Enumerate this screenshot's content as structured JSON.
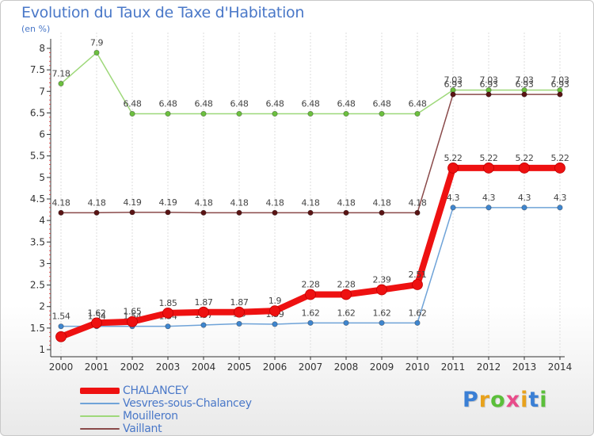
{
  "header": {
    "title": "Evolution du Taux de Taxe d'Habitation",
    "unit": "(en %)"
  },
  "logo": {
    "text": "Proxiti",
    "letter_colors": [
      "#3a7fd5",
      "#e8a21c",
      "#5bbf3a",
      "#e84c8a",
      "#e8a21c",
      "#3a7fd5",
      "#5bbf3a"
    ]
  },
  "chart_data": {
    "type": "line",
    "title": "Evolution du Taux de Taxe d'Habitation",
    "ylabel": "(en %)",
    "xlabel": "",
    "x": [
      "2000",
      "2001",
      "2002",
      "2003",
      "2004",
      "2005",
      "2006",
      "2007",
      "2008",
      "2009",
      "2010",
      "2011",
      "2012",
      "2013",
      "2014"
    ],
    "ylim": [
      0.75,
      8.1
    ],
    "y_ticks": [
      1,
      1.5,
      2,
      2.5,
      3,
      3.5,
      4,
      4.5,
      5,
      5.5,
      6,
      6.5,
      7,
      7.5,
      8
    ],
    "y_tick_labels": [
      "1",
      "1.5",
      "2",
      "2.5",
      "3",
      "3.5",
      "4",
      "4.5",
      "5",
      "5.5",
      "6",
      "6.5",
      "7",
      "7.5",
      "8"
    ],
    "grid": "vertical",
    "legend": "bottom-left",
    "series": [
      {
        "name": "CHALANCEY",
        "color": "#ee1111",
        "marker_color": "#ee1111",
        "emphasis": "thick",
        "values": [
          1.3,
          1.62,
          1.65,
          1.85,
          1.87,
          1.87,
          1.9,
          2.28,
          2.28,
          2.39,
          2.51,
          5.22,
          5.22,
          5.22,
          5.22
        ],
        "labels": [
          "",
          "1.62",
          "1.65",
          "1.85",
          "1.87",
          "1.87",
          "1.9",
          "2.28",
          "2.28",
          "2.39",
          "2.51",
          "5.22",
          "5.22",
          "5.22",
          "5.22"
        ]
      },
      {
        "name": "Vesvres-sous-Chalancey",
        "color": "#6fa3d8",
        "marker_color": "#3f86cf",
        "emphasis": "thin",
        "values": [
          1.54,
          1.54,
          1.54,
          1.54,
          1.57,
          1.6,
          1.59,
          1.62,
          1.62,
          1.62,
          1.62,
          4.3,
          4.3,
          4.3,
          4.3
        ],
        "labels": [
          "1.54",
          "1.54",
          "1.54",
          "1.54",
          "1.57",
          "1.6",
          "1.59",
          "1.62",
          "1.62",
          "1.62",
          "1.62",
          "4.3",
          "4.3",
          "4.3",
          "4.3"
        ]
      },
      {
        "name": "Mouilleron",
        "color": "#9ed87a",
        "marker_color": "#6cc03f",
        "emphasis": "thin",
        "values": [
          7.18,
          7.9,
          6.48,
          6.48,
          6.48,
          6.48,
          6.48,
          6.48,
          6.48,
          6.48,
          6.48,
          7.03,
          7.03,
          7.03,
          7.03
        ],
        "labels": [
          "7.18",
          "7.9",
          "6.48",
          "6.48",
          "6.48",
          "6.48",
          "6.48",
          "6.48",
          "6.48",
          "6.48",
          "6.48",
          "7.03",
          "7.03",
          "7.03",
          "7.03"
        ]
      },
      {
        "name": "Vaillant",
        "color": "#8a4a4a",
        "marker_color": "#5a1414",
        "emphasis": "thin",
        "values": [
          4.18,
          4.18,
          4.19,
          4.19,
          4.18,
          4.18,
          4.18,
          4.18,
          4.18,
          4.18,
          4.18,
          6.93,
          6.93,
          6.93,
          6.93
        ],
        "labels": [
          "4.18",
          "4.18",
          "4.19",
          "4.19",
          "4.18",
          "4.18",
          "4.18",
          "4.18",
          "4.18",
          "4.18",
          "4.18",
          "6.93",
          "6.93",
          "6.93",
          "6.93"
        ]
      }
    ]
  }
}
